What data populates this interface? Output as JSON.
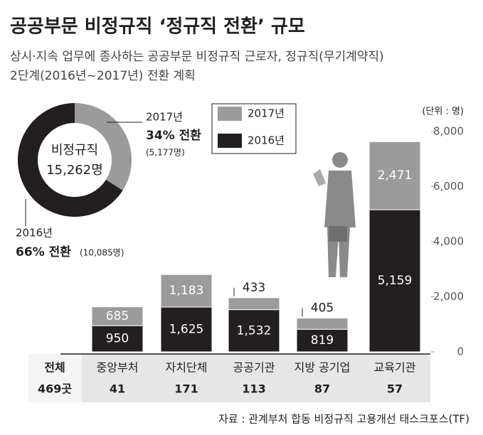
{
  "title": "공공부문 비정규직 ‘정규직 전환’ 규모",
  "subtitle": [
    "상시·지속 업무에 종사하는 공공부문 비정규직 근로자, 정규직(무기계약직)",
    "2단계(2016년~2017년) 전환 계획"
  ],
  "source": "자료 : 관계부처 합동 비정규직 고용개선 태스크포스(TF)",
  "chart_data": [
    {
      "type": "pie",
      "center_label": "비정규직",
      "center_value": "15,262명",
      "categories": [
        "2017년",
        "2016년"
      ],
      "values": [
        34,
        66
      ],
      "value_labels": [
        "34% 전환",
        "66% 전환"
      ],
      "counts": [
        "(5,177명)",
        "(10,085명)"
      ],
      "colors": [
        "#9b9b9b",
        "#231f20"
      ]
    },
    {
      "type": "bar",
      "stacked": true,
      "unit": "(단위 : 명)",
      "categories": [
        "중앙부처",
        "자치단체",
        "공공기관",
        "지방 공기업",
        "교육기관"
      ],
      "series": [
        {
          "name": "2016년",
          "color": "#231f20",
          "values": [
            950,
            1625,
            1532,
            819,
            5159
          ],
          "value_labels": [
            "950",
            "1,625",
            "1,532",
            "819",
            "5,159"
          ]
        },
        {
          "name": "2017년",
          "color": "#9b9b9b",
          "values": [
            685,
            1183,
            433,
            405,
            2471
          ],
          "value_labels": [
            "685",
            "1,183",
            "433",
            "405",
            "2,471"
          ]
        }
      ],
      "ylim": [
        0,
        8000
      ],
      "yticks": [
        0,
        {
          "value": 2000,
          "label": "2,000"
        },
        {
          "value": 4000,
          "label": "4,000"
        },
        {
          "value": 6000,
          "label": "6,000"
        },
        {
          "value": 8000,
          "label": "8,000"
        }
      ],
      "count_header": "전체",
      "count_total": "469곳",
      "counts": [
        41,
        171,
        113,
        87,
        57
      ]
    }
  ]
}
